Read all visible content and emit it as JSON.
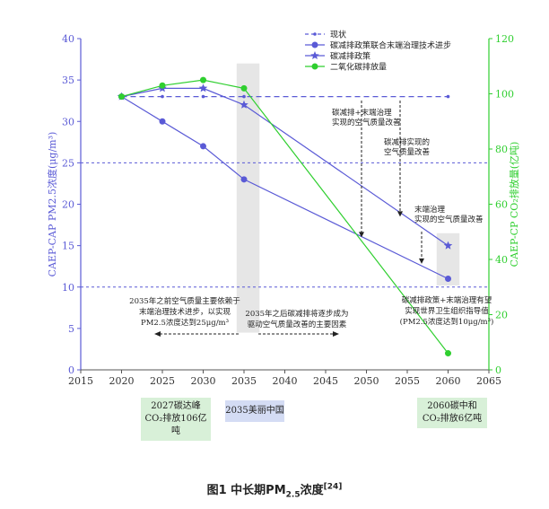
{
  "chart_data": {
    "type": "line",
    "x_ticks": [
      2015,
      2020,
      2025,
      2030,
      2035,
      2040,
      2045,
      2050,
      2055,
      2060,
      2065
    ],
    "xlim": [
      2015,
      2065
    ],
    "left_axis": {
      "label": "CAEP-CAP PM2.5浓度(μg/m³)",
      "ylim": [
        0,
        40
      ],
      "ticks": [
        0,
        5,
        10,
        15,
        20,
        25,
        30,
        35,
        40
      ]
    },
    "right_axis": {
      "label": "CAEP-CP CO₂排放量(亿吨)",
      "ylim": [
        0,
        120
      ],
      "ticks": [
        0,
        20,
        40,
        60,
        80,
        100,
        120
      ]
    },
    "reference_lines": [
      25,
      10
    ],
    "series": [
      {
        "name": "现状",
        "axis": "left",
        "color": "#5a5ad6",
        "style": "dashed",
        "marker": "dot",
        "x": [
          2020,
          2025,
          2030,
          2035,
          2060
        ],
        "y": [
          33,
          33,
          33,
          33,
          33
        ]
      },
      {
        "name": "碳减排政策联合末端治理技术进步",
        "axis": "left",
        "color": "#5a5ad6",
        "style": "solid",
        "marker": "circle",
        "x": [
          2020,
          2025,
          2030,
          2035,
          2060
        ],
        "y": [
          33,
          30,
          27,
          23,
          11
        ]
      },
      {
        "name": "碳减排政策",
        "axis": "left",
        "color": "#5a5ad6",
        "style": "solid",
        "marker": "star",
        "x": [
          2020,
          2025,
          2030,
          2035,
          2060
        ],
        "y": [
          33,
          34,
          34,
          32,
          15
        ]
      },
      {
        "name": "二氧化碳排放量",
        "axis": "right",
        "color": "#2fcf2f",
        "style": "solid",
        "marker": "circle",
        "x": [
          2020,
          2025,
          2030,
          2035,
          2060
        ],
        "y": [
          99,
          103,
          105,
          102,
          6
        ]
      }
    ],
    "annotations": [
      {
        "id": "a1",
        "text": "碳减排+末端治理\n实现的空气质量改善"
      },
      {
        "id": "a2",
        "text": "碳减排实现的\n空气质量改善"
      },
      {
        "id": "a3",
        "text": "末端治理\n实现的空气质量改善"
      },
      {
        "id": "a4",
        "text": "2035年之前空气质量主要依赖于\n末端治理技术进步，以实现\nPM2.5浓度达到25μg/m³"
      },
      {
        "id": "a5",
        "text": "2035年之后碳减排将逐步成为\n驱动空气质量改善的主要因素"
      },
      {
        "id": "a6",
        "text": "碳减排政策+末端治理有望\n实现世界卫生组织指导值\n(PM2.5浓度达到10μg/m³)"
      }
    ]
  },
  "bottom_labels": {
    "peak": [
      "2027碳达峰",
      "CO₂排放106亿吨"
    ],
    "beautiful": "2035美丽中国",
    "neutral": [
      "2060碳中和",
      "CO₂排放6亿吨"
    ]
  },
  "caption": {
    "main": "图1  中长期PM",
    "sub": "2.5",
    "after": "浓度",
    "sup": "[24]"
  }
}
